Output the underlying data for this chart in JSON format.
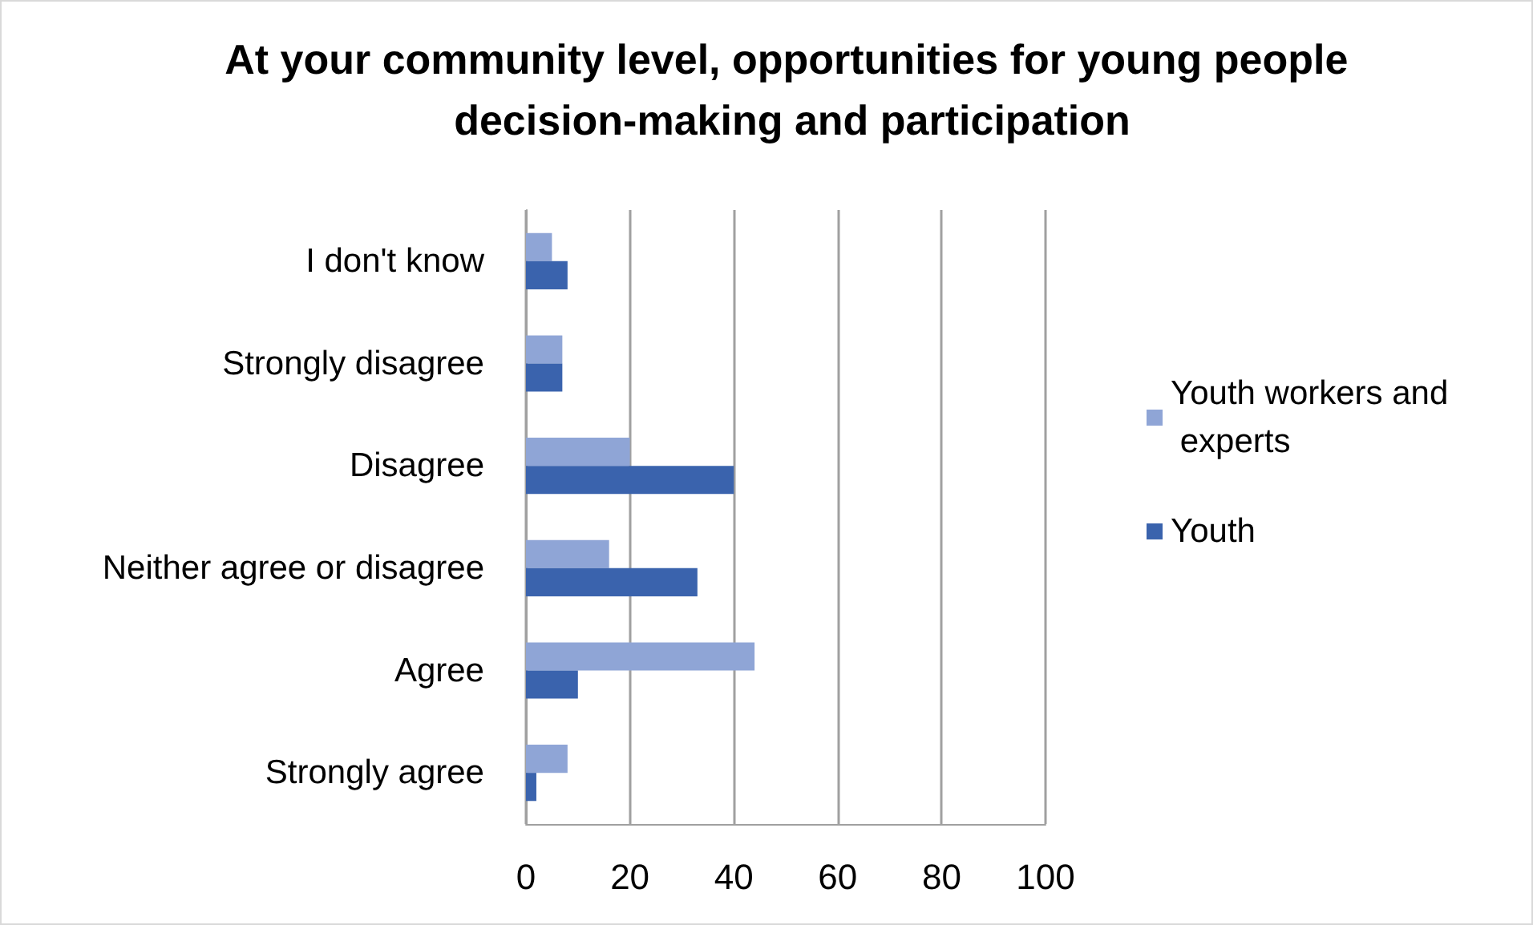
{
  "chart_data": {
    "type": "bar",
    "orientation": "horizontal",
    "title": "At your community level, opportunities for young people decision-making and participation",
    "categories": [
      "I don't know",
      "Strongly disagree",
      "Disagree",
      "Neither agree or disagree",
      "Agree",
      "Strongly agree"
    ],
    "series": [
      {
        "name": "Youth workers and experts",
        "color": "#8fa5d6",
        "values": [
          5,
          7,
          20,
          16,
          44,
          8
        ]
      },
      {
        "name": "Youth",
        "color": "#3a63ad",
        "values": [
          8,
          7,
          40,
          33,
          10,
          2
        ]
      }
    ],
    "xlim": [
      0,
      100
    ],
    "xticks": [
      0,
      20,
      40,
      60,
      80,
      100
    ],
    "grid": "x",
    "legend": "right"
  }
}
